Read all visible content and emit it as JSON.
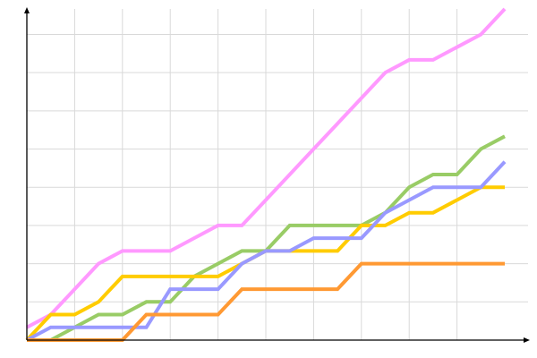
{
  "chart_data": {
    "type": "line",
    "title": "",
    "xlabel": "",
    "ylabel": "",
    "x": [
      0,
      1,
      2,
      3,
      4,
      5,
      6,
      7,
      8,
      9,
      10,
      11,
      12,
      13,
      14,
      15,
      16,
      17,
      18,
      19,
      20
    ],
    "xlim": [
      0,
      20
    ],
    "ylim": [
      0,
      26
    ],
    "grid": true,
    "x_grid_every": 2,
    "y_grid_every": 3,
    "legend": "none",
    "series": [
      {
        "color": "#ff99ff",
        "values": [
          1,
          2,
          4,
          6,
          7,
          7,
          7,
          8,
          9,
          9,
          11,
          13,
          15,
          17,
          19,
          21,
          22,
          22,
          23,
          24,
          26
        ]
      },
      {
        "color": "#99cc66",
        "values": [
          0,
          0,
          1,
          2,
          2,
          3,
          3,
          5,
          6,
          7,
          7,
          9,
          9,
          9,
          9,
          10,
          12,
          13,
          13,
          15,
          16
        ]
      },
      {
        "color": "#ffcc00",
        "values": [
          0,
          2,
          2,
          3,
          5,
          5,
          5,
          5,
          5,
          6,
          7,
          7,
          7,
          7,
          9,
          9,
          10,
          10,
          11,
          12,
          12
        ]
      },
      {
        "color": "#9999ff",
        "values": [
          0,
          1,
          1,
          1,
          1,
          1,
          4,
          4,
          4,
          6,
          7,
          7,
          8,
          8,
          8,
          10,
          11,
          12,
          12,
          12,
          14
        ]
      },
      {
        "color": "#ff9933",
        "values": [
          0,
          0,
          0,
          0,
          0,
          2,
          2,
          2,
          2,
          4,
          4,
          4,
          4,
          4,
          6,
          6,
          6,
          6,
          6,
          6,
          6
        ]
      }
    ]
  }
}
